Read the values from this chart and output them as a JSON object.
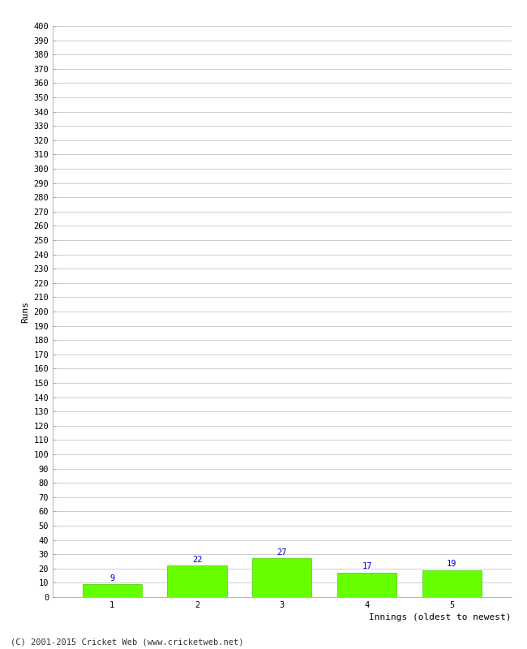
{
  "categories": [
    1,
    2,
    3,
    4,
    5
  ],
  "values": [
    9,
    22,
    27,
    17,
    19
  ],
  "bar_color": "#66ff00",
  "bar_edge_color": "#44cc00",
  "xlabel": "Innings (oldest to newest)",
  "ylabel": "Runs",
  "ylim": [
    0,
    400
  ],
  "ytick_step": 10,
  "value_label_color": "#0000cc",
  "value_label_fontsize": 7.5,
  "axis_label_fontsize": 8,
  "tick_fontsize": 7.5,
  "background_color": "#ffffff",
  "grid_color": "#bbbbbb",
  "footer": "(C) 2001-2015 Cricket Web (www.cricketweb.net)",
  "footer_fontsize": 7.5
}
